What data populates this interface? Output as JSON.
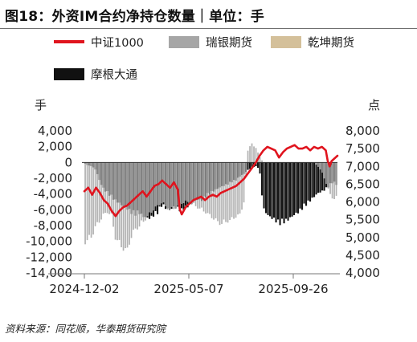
{
  "title": "图18：外资IM合约净持仓数量｜单位：手",
  "source": "资料来源：同花顺，华泰期货研究院",
  "chart_data": {
    "type": "bar+line",
    "left_unit": "手",
    "right_unit": "点",
    "y_left": {
      "ticks": [
        "4,000",
        "2,000",
        "0",
        "-2,000",
        "-4,000",
        "-6,000",
        "-8,000",
        "-10,000",
        "-12,000",
        "-14,000"
      ],
      "range": [
        -14000,
        4000
      ]
    },
    "y_right": {
      "ticks": [
        "8,000",
        "7,500",
        "7,000",
        "6,500",
        "6,000",
        "5,500",
        "5,000",
        "4,500",
        "4,000"
      ],
      "range": [
        4000,
        8000
      ]
    },
    "x_labels": [
      "2024-12-02",
      "2025-05-07",
      "2025-09-26"
    ],
    "legend": [
      {
        "name": "中证1000",
        "kind": "line",
        "color": "#e0141e"
      },
      {
        "name": "瑞银期货",
        "kind": "bar",
        "color": "#a6a6a6"
      },
      {
        "name": "乾坤期货",
        "kind": "bar",
        "color": "#d4c09a"
      },
      {
        "name": "摩根大通",
        "kind": "bar",
        "color": "#111111"
      }
    ],
    "series": {
      "csi1000": [
        [
          0,
          6300
        ],
        [
          4,
          6400
        ],
        [
          8,
          6200
        ],
        [
          12,
          6400
        ],
        [
          16,
          6250
        ],
        [
          20,
          6050
        ],
        [
          24,
          5950
        ],
        [
          28,
          5750
        ],
        [
          32,
          5600
        ],
        [
          36,
          5750
        ],
        [
          40,
          5850
        ],
        [
          44,
          5900
        ],
        [
          48,
          6000
        ],
        [
          52,
          6100
        ],
        [
          56,
          6200
        ],
        [
          60,
          6300
        ],
        [
          64,
          6150
        ],
        [
          68,
          6300
        ],
        [
          72,
          6450
        ],
        [
          76,
          6500
        ],
        [
          80,
          6600
        ],
        [
          84,
          6500
        ],
        [
          88,
          6400
        ],
        [
          92,
          6550
        ],
        [
          96,
          6350
        ],
        [
          98,
          5800
        ],
        [
          100,
          5650
        ],
        [
          104,
          5850
        ],
        [
          108,
          5950
        ],
        [
          112,
          6050
        ],
        [
          116,
          6100
        ],
        [
          120,
          6150
        ],
        [
          124,
          6050
        ],
        [
          128,
          6150
        ],
        [
          132,
          6200
        ],
        [
          136,
          6150
        ],
        [
          140,
          6250
        ],
        [
          144,
          6300
        ],
        [
          148,
          6350
        ],
        [
          152,
          6400
        ],
        [
          156,
          6450
        ],
        [
          160,
          6550
        ],
        [
          164,
          6650
        ],
        [
          168,
          6800
        ],
        [
          172,
          6950
        ],
        [
          176,
          7100
        ],
        [
          180,
          7300
        ],
        [
          184,
          7450
        ],
        [
          188,
          7550
        ],
        [
          192,
          7500
        ],
        [
          196,
          7450
        ],
        [
          200,
          7250
        ],
        [
          204,
          7400
        ],
        [
          208,
          7500
        ],
        [
          212,
          7550
        ],
        [
          216,
          7600
        ],
        [
          220,
          7500
        ],
        [
          224,
          7500
        ],
        [
          228,
          7550
        ],
        [
          232,
          7450
        ],
        [
          236,
          7550
        ],
        [
          240,
          7500
        ],
        [
          244,
          7550
        ],
        [
          248,
          7450
        ],
        [
          250,
          7150
        ],
        [
          252,
          7000
        ],
        [
          254,
          7150
        ],
        [
          256,
          7200
        ],
        [
          258,
          7250
        ],
        [
          260,
          7300
        ]
      ],
      "jpm": [
        [
          0,
          -100
        ],
        [
          4,
          -400
        ],
        [
          8,
          -500
        ],
        [
          12,
          -1000
        ],
        [
          16,
          -2500
        ],
        [
          20,
          -3500
        ],
        [
          24,
          -4000
        ],
        [
          28,
          -4500
        ],
        [
          32,
          -5000
        ],
        [
          36,
          -5300
        ],
        [
          40,
          -5800
        ],
        [
          44,
          -6000
        ],
        [
          48,
          -6500
        ],
        [
          52,
          -6800
        ],
        [
          56,
          -6500
        ],
        [
          60,
          -7000
        ],
        [
          64,
          -7200
        ],
        [
          68,
          -7300
        ],
        [
          72,
          -6800
        ],
        [
          76,
          -6500
        ],
        [
          80,
          -5500
        ],
        [
          84,
          -6000
        ],
        [
          88,
          -6200
        ],
        [
          92,
          -5800
        ],
        [
          96,
          -6000
        ],
        [
          100,
          -6400
        ],
        [
          104,
          -6000
        ],
        [
          108,
          -5500
        ],
        [
          112,
          -5200
        ],
        [
          116,
          -4800
        ],
        [
          120,
          -5000
        ],
        [
          124,
          -4500
        ],
        [
          128,
          -4200
        ],
        [
          132,
          -3800
        ],
        [
          136,
          -3500
        ],
        [
          140,
          -3200
        ],
        [
          144,
          -3000
        ],
        [
          148,
          -2800
        ],
        [
          152,
          -2500
        ],
        [
          156,
          -2300
        ],
        [
          160,
          -1800
        ],
        [
          164,
          -1500
        ],
        [
          168,
          -1000
        ],
        [
          172,
          -700
        ],
        [
          176,
          -500
        ],
        [
          180,
          -800
        ],
        [
          184,
          -6000
        ],
        [
          188,
          -6800
        ],
        [
          192,
          -7200
        ],
        [
          196,
          -7500
        ],
        [
          200,
          -8000
        ],
        [
          204,
          -7800
        ],
        [
          208,
          -7600
        ],
        [
          212,
          -7200
        ],
        [
          216,
          -6800
        ],
        [
          220,
          -6500
        ],
        [
          224,
          -6000
        ],
        [
          228,
          -5500
        ],
        [
          232,
          -5000
        ],
        [
          236,
          -4500
        ],
        [
          240,
          -4000
        ],
        [
          244,
          -3800
        ],
        [
          248,
          -3500
        ],
        [
          252,
          -3000
        ],
        [
          256,
          -2500
        ],
        [
          260,
          -3000
        ]
      ],
      "ubs": [
        [
          0,
          -10500
        ],
        [
          4,
          -10000
        ],
        [
          8,
          -9600
        ],
        [
          12,
          -8200
        ],
        [
          16,
          -7600
        ],
        [
          20,
          -6800
        ],
        [
          24,
          -6400
        ],
        [
          28,
          -7000
        ],
        [
          32,
          -9800
        ],
        [
          36,
          -10500
        ],
        [
          40,
          -11200
        ],
        [
          44,
          -11500
        ],
        [
          48,
          -9800
        ],
        [
          52,
          -8700
        ],
        [
          56,
          -8400
        ],
        [
          60,
          -7800
        ],
        [
          64,
          -7200
        ],
        [
          68,
          -6600
        ],
        [
          72,
          -6000
        ],
        [
          76,
          -5600
        ],
        [
          80,
          -5200
        ],
        [
          84,
          -5800
        ],
        [
          88,
          -6200
        ],
        [
          92,
          -6000
        ],
        [
          96,
          -5700
        ],
        [
          100,
          -5300
        ],
        [
          104,
          -5100
        ],
        [
          108,
          -5300
        ],
        [
          112,
          -5500
        ],
        [
          116,
          -5800
        ],
        [
          120,
          -6100
        ],
        [
          124,
          -6400
        ],
        [
          128,
          -6800
        ],
        [
          132,
          -7200
        ],
        [
          136,
          -7600
        ],
        [
          140,
          -8000
        ],
        [
          144,
          -7800
        ],
        [
          148,
          -7600
        ],
        [
          152,
          -7400
        ],
        [
          156,
          -7000
        ],
        [
          160,
          -6800
        ],
        [
          164,
          -5200
        ],
        [
          168,
          1500
        ],
        [
          172,
          2500
        ],
        [
          176,
          2000
        ],
        [
          180,
          800
        ],
        [
          184,
          0
        ],
        [
          188,
          0
        ],
        [
          192,
          0
        ],
        [
          196,
          0
        ],
        [
          200,
          0
        ],
        [
          204,
          0
        ],
        [
          208,
          0
        ],
        [
          212,
          0
        ],
        [
          216,
          0
        ],
        [
          220,
          0
        ],
        [
          224,
          0
        ],
        [
          228,
          0
        ],
        [
          232,
          0
        ],
        [
          236,
          0
        ],
        [
          240,
          -500
        ],
        [
          244,
          -1200
        ],
        [
          248,
          -2500
        ],
        [
          252,
          -4000
        ],
        [
          256,
          -4800
        ],
        [
          260,
          -4500
        ]
      ]
    }
  }
}
